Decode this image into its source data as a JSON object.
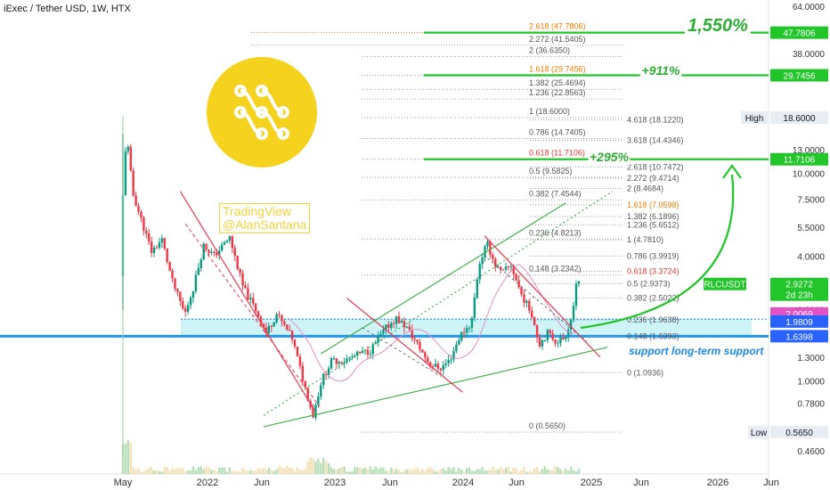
{
  "title": "iExec / Tether USD, 1W, HTX",
  "watermark": [
    "TradingView",
    "@AlanSantana"
  ],
  "colors": {
    "up": "#089981",
    "down": "#f23645",
    "green_line": "#22c52a",
    "blue_line": "#2196f3",
    "support_zone": "#bdf0f5",
    "trend_red": "#e53950",
    "channel_green": "#3fb24a"
  },
  "chart_data": {
    "type": "candlestick",
    "symbol": "RLCUSDT",
    "timeframe": "1W",
    "scale": "log",
    "ylim": [
      0.42,
      66
    ],
    "y_ticks": [
      "64.0000",
      "38.0000",
      "18.6000",
      "13.0000",
      "10.0000",
      "7.5000",
      "5.5000",
      "4.0000",
      "2.2000",
      "1.3000",
      "1.0000",
      "0.7800",
      "0.4600"
    ],
    "x_ticks": [
      "May",
      "2022",
      "Jun",
      "2023",
      "Jun",
      "2024",
      "Jun",
      "2025",
      "Jun",
      "2026",
      "Jun"
    ],
    "price_tags": [
      {
        "label": "47.7806",
        "value": 47.7806,
        "style": "green"
      },
      {
        "label": "29.7456",
        "value": 29.7456,
        "style": "green"
      },
      {
        "label": "High",
        "value": 18.6,
        "style": "plain"
      },
      {
        "label": "18.6000",
        "value": 18.6,
        "style": "plain"
      },
      {
        "label": "11.7106",
        "value": 11.7106,
        "style": "green"
      },
      {
        "label": "RLCUSDT",
        "value": 2.9272,
        "style": "symbol"
      },
      {
        "label": "2.9272",
        "value": 2.9272,
        "style": "green"
      },
      {
        "label": "2d 23h",
        "value": 2.74,
        "style": "green"
      },
      {
        "label": "2.0069",
        "value": 2.0069,
        "style": "pink"
      },
      {
        "label": "1.9809",
        "value": 1.9809,
        "style": "blue"
      },
      {
        "label": "1.6398",
        "value": 1.6398,
        "style": "blue"
      },
      {
        "label": "Low",
        "value": 0.565,
        "style": "plain"
      },
      {
        "label": "0.5650",
        "value": 0.565,
        "style": "plain"
      }
    ],
    "targets": [
      {
        "label": "1,550%",
        "value": 47.7806
      },
      {
        "label": "+911%",
        "value": 29.7456
      },
      {
        "label": "+295%",
        "value": 11.7106
      }
    ],
    "support_label": "support long-term support",
    "support_lines": [
      1.9809,
      1.6398
    ],
    "fib_left": [
      {
        "label": "2.618 (47.7806)",
        "value": 47.7806,
        "style": "orange"
      },
      {
        "label": "2.272 (41.5405)",
        "value": 41.5405
      },
      {
        "label": "2 (36.6350)",
        "value": 36.635
      },
      {
        "label": "1.618 (29.7456)",
        "value": 29.7456,
        "style": "orange"
      },
      {
        "label": "1.382 (25.4694)",
        "value": 25.4694
      },
      {
        "label": "1.236 (22.8563)",
        "value": 22.8563
      },
      {
        "label": "1 (18.6000)",
        "value": 18.6
      },
      {
        "label": "0.786 (14.7405)",
        "value": 14.7405
      },
      {
        "label": "0.618 (11.7106)",
        "value": 11.7106,
        "style": "red"
      },
      {
        "label": "0.5 (9.5825)",
        "value": 9.5825
      },
      {
        "label": "0.382 (7.4544)",
        "value": 7.4544
      },
      {
        "label": "0.236 (4.8213)",
        "value": 4.8213
      },
      {
        "label": "0.148 (3.2342)",
        "value": 3.2342
      },
      {
        "label": "0 (0.5650)",
        "value": 0.565
      }
    ],
    "fib_right": [
      {
        "label": "4.618 (18.1220)",
        "value": 18.122
      },
      {
        "label": "3.618 (14.4346)",
        "value": 14.4346
      },
      {
        "label": "2.618 (10.7472)",
        "value": 10.7472
      },
      {
        "label": "2.272 (9.4714)",
        "value": 9.4714
      },
      {
        "label": "2 (8.4684)",
        "value": 8.4684
      },
      {
        "label": "1.618 (7.0598)",
        "value": 7.0598,
        "style": "orange"
      },
      {
        "label": "1.382 (6.1896)",
        "value": 6.1896
      },
      {
        "label": "1.236 (5.6512)",
        "value": 5.6512
      },
      {
        "label": "1 (4.7810)",
        "value": 4.781
      },
      {
        "label": "0.786 (3.9919)",
        "value": 3.9919
      },
      {
        "label": "0.618 (3.3724)",
        "value": 3.3724,
        "style": "red"
      },
      {
        "label": "0.5 (2.9373)",
        "value": 2.9373
      },
      {
        "label": "0.382 (2.5022)",
        "value": 2.5022
      },
      {
        "label": "0.236 (1.9638)",
        "value": 1.9638
      },
      {
        "label": "0.148 (1.6393)",
        "value": 1.6393
      },
      {
        "label": "0 (1.0936)",
        "value": 1.0936
      }
    ],
    "anchors": [
      {
        "t": 0.0,
        "p": 3.2
      },
      {
        "t": 0.3,
        "p": 9.3
      },
      {
        "t": 0.6,
        "p": 15.5
      },
      {
        "t": 1.2,
        "p": 8.0
      },
      {
        "t": 2.0,
        "p": 6.0
      },
      {
        "t": 3.0,
        "p": 4.2
      },
      {
        "t": 4.0,
        "p": 4.8
      },
      {
        "t": 5.0,
        "p": 3.0
      },
      {
        "t": 6.2,
        "p": 2.1
      },
      {
        "t": 7.0,
        "p": 2.8
      },
      {
        "t": 8.0,
        "p": 4.5
      },
      {
        "t": 9.0,
        "p": 4.0
      },
      {
        "t": 10.5,
        "p": 4.9
      },
      {
        "t": 11.8,
        "p": 2.8
      },
      {
        "t": 13.0,
        "p": 2.2
      },
      {
        "t": 14.0,
        "p": 1.7
      },
      {
        "t": 15.0,
        "p": 2.1
      },
      {
        "t": 16.5,
        "p": 1.6
      },
      {
        "t": 17.8,
        "p": 0.9
      },
      {
        "t": 18.5,
        "p": 0.68
      },
      {
        "t": 19.3,
        "p": 1.0
      },
      {
        "t": 20.3,
        "p": 1.25
      },
      {
        "t": 21.5,
        "p": 1.25
      },
      {
        "t": 23.0,
        "p": 1.35
      },
      {
        "t": 24.0,
        "p": 1.4
      },
      {
        "t": 25.5,
        "p": 1.8
      },
      {
        "t": 26.5,
        "p": 2.0
      },
      {
        "t": 27.5,
        "p": 1.8
      },
      {
        "t": 28.5,
        "p": 1.5
      },
      {
        "t": 29.7,
        "p": 1.2
      },
      {
        "t": 30.7,
        "p": 1.15
      },
      {
        "t": 31.6,
        "p": 1.25
      },
      {
        "t": 32.6,
        "p": 1.65
      },
      {
        "t": 33.7,
        "p": 1.9
      },
      {
        "t": 34.4,
        "p": 3.6
      },
      {
        "t": 35.2,
        "p": 4.6
      },
      {
        "t": 36.0,
        "p": 3.6
      },
      {
        "t": 36.6,
        "p": 3.3
      },
      {
        "t": 37.5,
        "p": 3.6
      },
      {
        "t": 38.5,
        "p": 2.6
      },
      {
        "t": 39.5,
        "p": 2.1
      },
      {
        "t": 40.2,
        "p": 1.5
      },
      {
        "t": 41.0,
        "p": 1.7
      },
      {
        "t": 41.8,
        "p": 1.55
      },
      {
        "t": 42.6,
        "p": 1.6
      },
      {
        "t": 43.3,
        "p": 2.0
      },
      {
        "t": 43.8,
        "p": 2.93
      }
    ]
  }
}
